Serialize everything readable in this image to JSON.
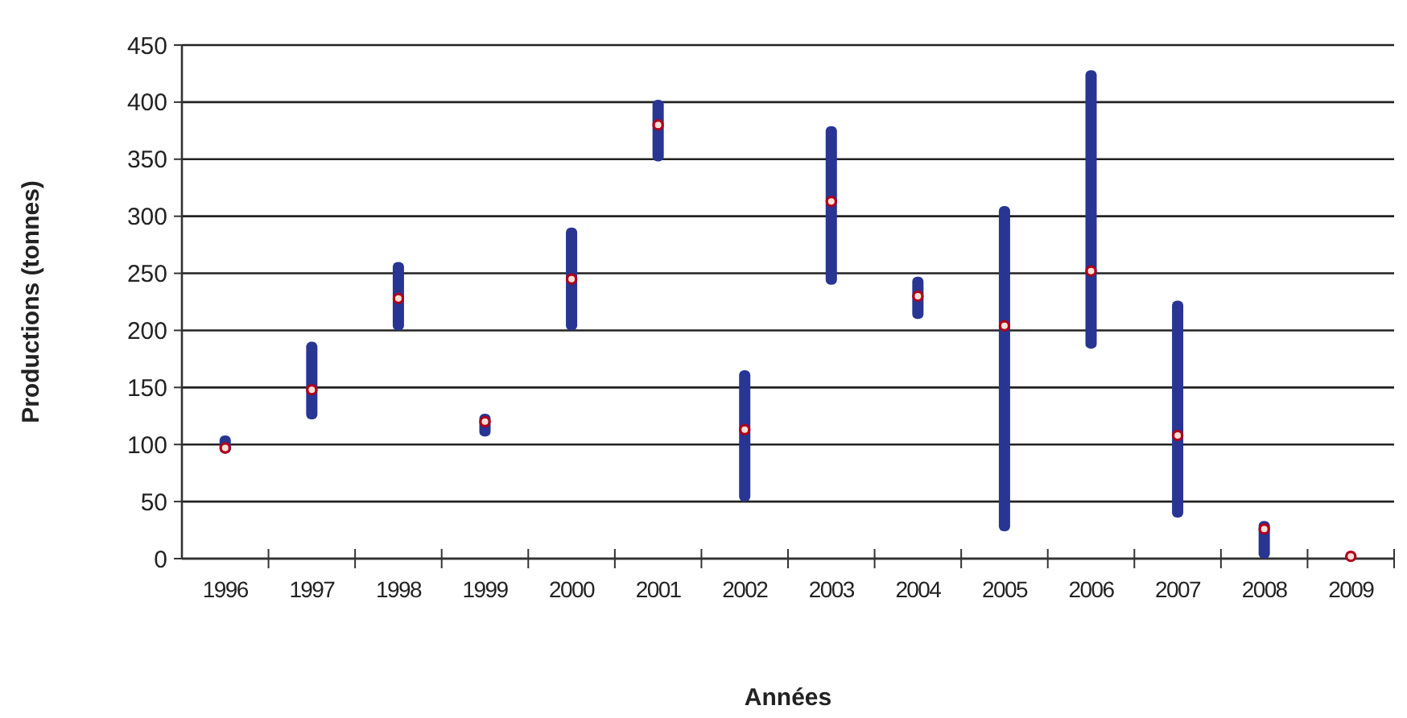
{
  "chart_data": {
    "type": "bar",
    "xlabel": "Années",
    "ylabel": "Productions (tonnes)",
    "categories": [
      "1996",
      "1997",
      "1998",
      "1999",
      "2000",
      "2001",
      "2002",
      "2003",
      "2004",
      "2005",
      "2006",
      "2007",
      "2008",
      "2009"
    ],
    "series": [
      {
        "color": "#283593",
        "base": [
          92,
          122,
          200,
          107,
          200,
          348,
          50,
          240,
          210,
          24,
          184,
          36,
          0,
          null
        ],
        "values": [
          16,
          68,
          60,
          20,
          90,
          54,
          115,
          139,
          37,
          285,
          244,
          190,
          33,
          null
        ]
      },
      {
        "type": "scatter",
        "color": "#b0001a",
        "marker": "circle",
        "values": [
          97,
          148,
          228,
          120,
          245,
          380,
          113,
          313,
          230,
          204,
          252,
          108,
          26,
          2
        ]
      }
    ],
    "ylim": [
      0,
      450
    ],
    "yticks": [
      0,
      50,
      100,
      150,
      200,
      250,
      300,
      350,
      400,
      450
    ],
    "grid": "y"
  }
}
